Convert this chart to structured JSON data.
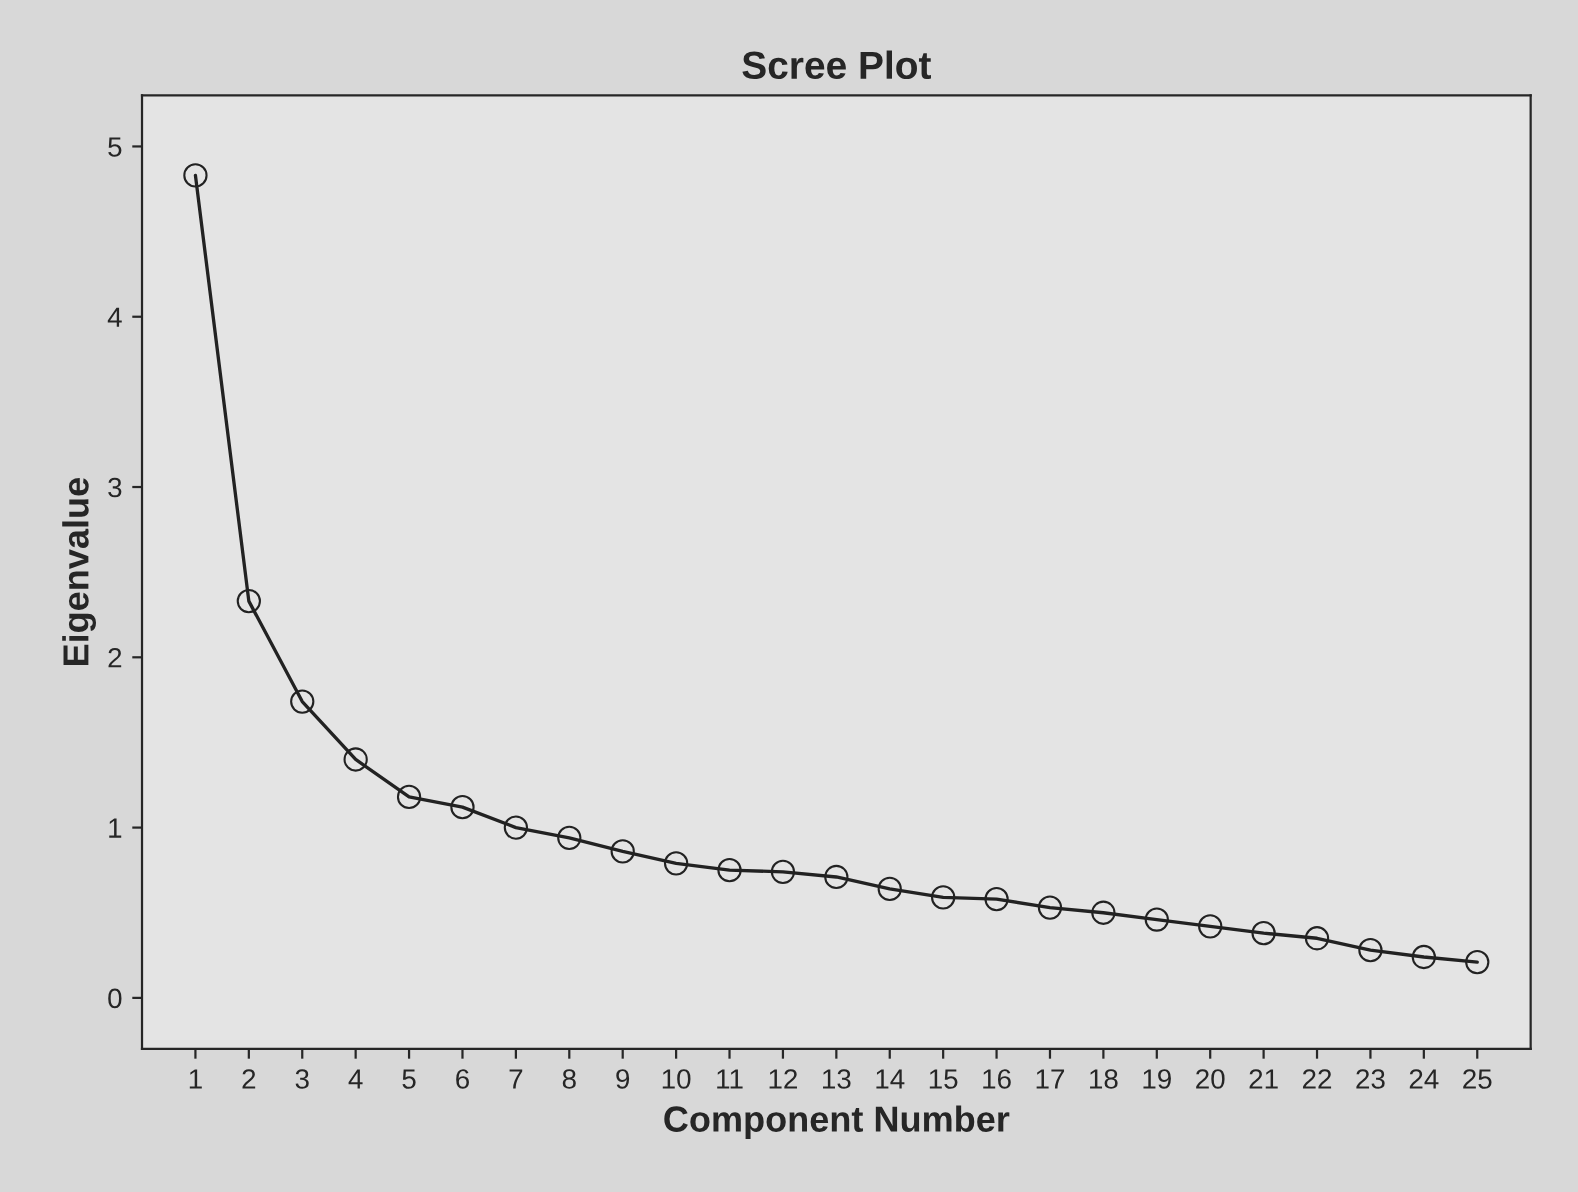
{
  "chart_data": {
    "type": "line",
    "title": "Scree Plot",
    "xlabel": "Component Number",
    "ylabel": "Eigenvalue",
    "categories": [
      "1",
      "2",
      "3",
      "4",
      "5",
      "6",
      "7",
      "8",
      "9",
      "10",
      "11",
      "12",
      "13",
      "14",
      "15",
      "16",
      "17",
      "18",
      "19",
      "20",
      "21",
      "22",
      "23",
      "24",
      "25"
    ],
    "series": [
      {
        "color": "#222222",
        "values": [
          4.83,
          2.33,
          1.74,
          1.4,
          1.18,
          1.12,
          1.0,
          0.94,
          0.86,
          0.79,
          0.75,
          0.74,
          0.71,
          0.64,
          0.59,
          0.58,
          0.53,
          0.5,
          0.46,
          0.42,
          0.38,
          0.35,
          0.28,
          0.24,
          0.21
        ]
      }
    ],
    "ylim": [
      -0.3,
      5.3
    ],
    "yticks": [
      0,
      1,
      2,
      3,
      4,
      5
    ],
    "grid": false,
    "marker": "circle",
    "line_style": "solid"
  }
}
